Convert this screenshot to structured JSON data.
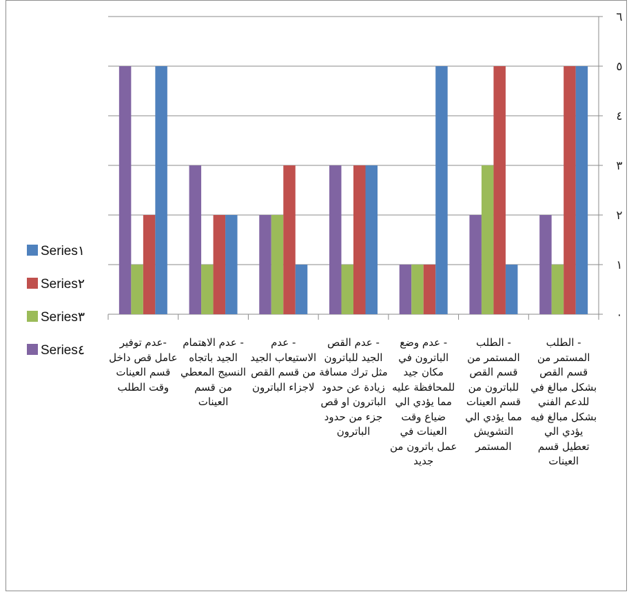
{
  "chart_data": {
    "type": "bar",
    "categories": [
      "- الطلب المستمر من قسم القص بشكل مبالغ في للدعم الفني بشكل مبالغ فيه يؤدي الي تعطيل قسم العينات",
      "- الطلب المستمر من قسم القص للباترون من قسم العينات مما يؤدي الي التشويش المستمر",
      "- عدم وضع الباترون في مكان جيد للمحافظة عليه مما يؤدي الي ضياع وقت العينات في عمل باترون من جديد",
      "- عدم القص الجيد للباترون مثل ترك مسافة زيادة عن حدود الباترون او قص جزء من حدود الباترون",
      "- عدم الاستيعاب الجيد من قسم القص لاجزاء الباترون",
      "- عدم الاهتمام الجيد باتجاه النسيج المعطي من قسم العينات",
      "-عدم توفير عامل قص داخل قسم العينات وقت الطلب"
    ],
    "series": [
      {
        "name": "Series١",
        "color": "#4F81BD",
        "values": [
          5,
          1,
          5,
          3,
          1,
          2,
          5
        ]
      },
      {
        "name": "Series٢",
        "color": "#C0504D",
        "values": [
          5,
          5,
          1,
          3,
          3,
          2,
          2
        ]
      },
      {
        "name": "Series٣",
        "color": "#9BBB59",
        "values": [
          1,
          3,
          1,
          1,
          2,
          1,
          1
        ]
      },
      {
        "name": "Series٤",
        "color": "#8064A2",
        "values": [
          2,
          2,
          1,
          3,
          2,
          3,
          5
        ]
      }
    ],
    "y_tick_labels": [
      "٠",
      "١",
      "٢",
      "٣",
      "٤",
      "٥",
      "٦"
    ],
    "ylim": [
      0,
      6
    ],
    "grid": true,
    "y_axis_side": "right",
    "category_order": "right-to-left",
    "legend_position": "left",
    "title": "",
    "xlabel": "",
    "ylabel": ""
  }
}
